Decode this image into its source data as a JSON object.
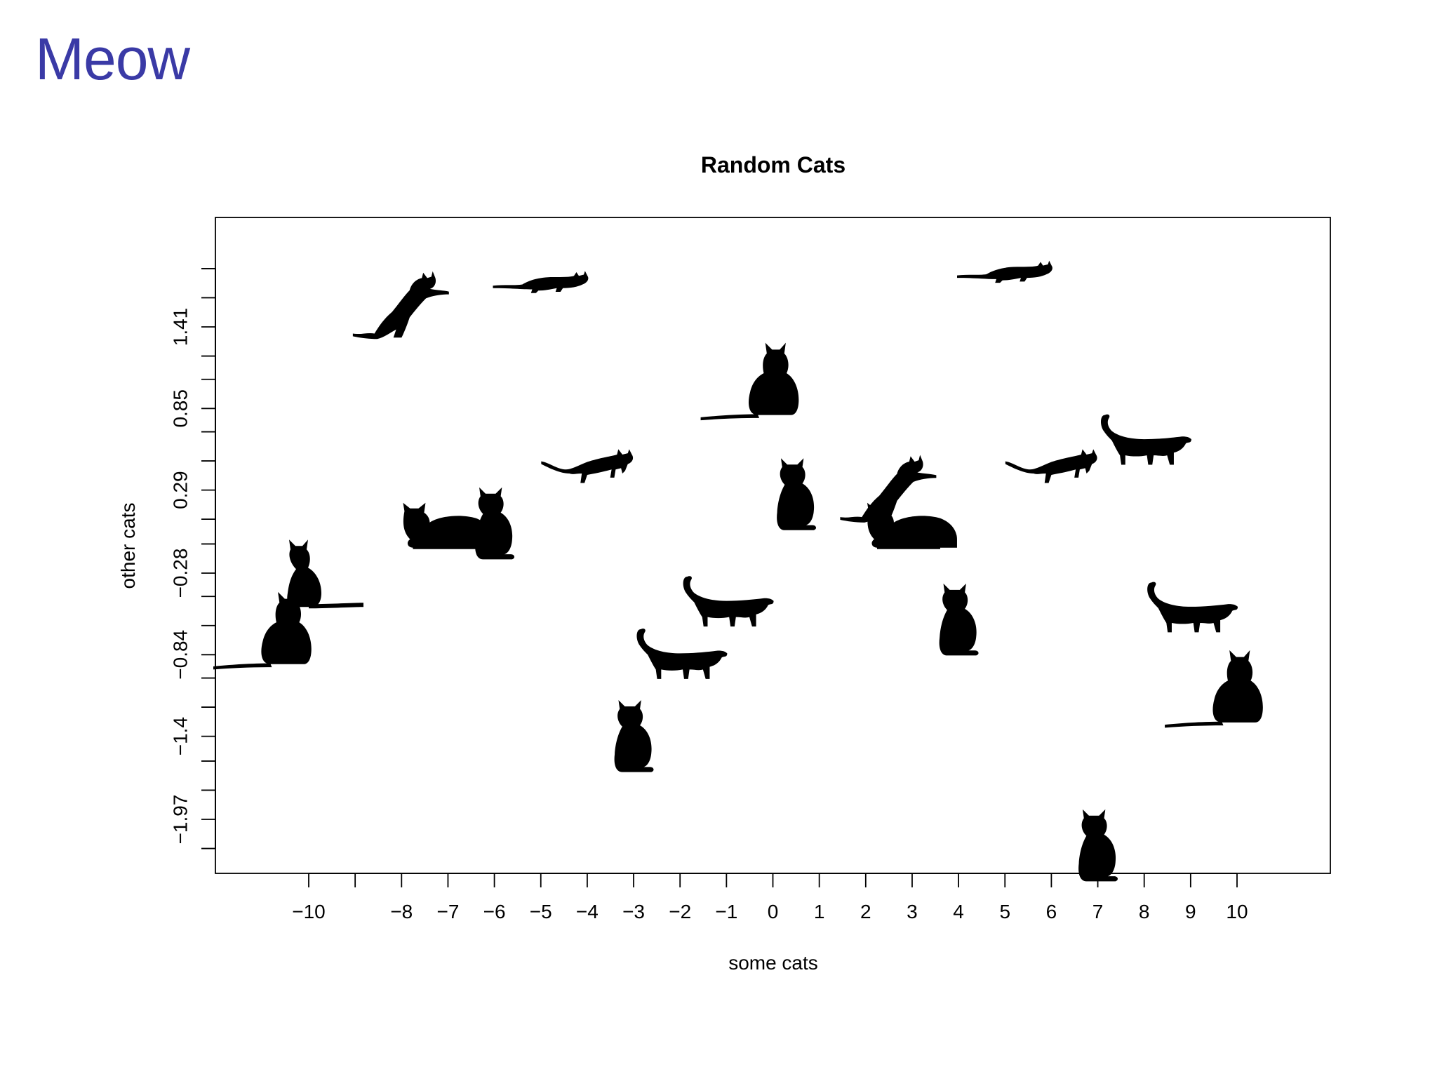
{
  "slide": {
    "title": "Meow"
  },
  "chart_data": {
    "type": "scatter",
    "title": "Random Cats",
    "xlabel": "some cats",
    "ylabel": "other cats",
    "marker": "cat-silhouette-icon",
    "marker_color": "#000000",
    "title_color": "#3a3aa6",
    "xlim": [
      -12,
      12
    ],
    "ylim": [
      -2.6,
      2.2
    ],
    "grid": false,
    "x_ticks": [
      -10,
      -9,
      -8,
      -7,
      -6,
      -5,
      -4,
      -3,
      -2,
      -1,
      0,
      1,
      2,
      3,
      4,
      5,
      6,
      7,
      8,
      9,
      10
    ],
    "x_tick_labels": [
      "−10",
      "",
      "−8",
      "−7",
      "−6",
      "−5",
      "−4",
      "−3",
      "−2",
      "−1",
      "0",
      "1",
      "2",
      "3",
      "4",
      "5",
      "6",
      "7",
      "8",
      "9",
      "10"
    ],
    "y_ticks": [
      -2.17,
      -1.97,
      -1.77,
      -1.57,
      -1.4,
      -1.2,
      -1.0,
      -0.84,
      -0.64,
      -0.44,
      -0.28,
      -0.08,
      0.09,
      0.29,
      0.49,
      0.69,
      0.85,
      1.05,
      1.21,
      1.41,
      1.61,
      1.81
    ],
    "y_tick_labels": [
      "",
      "−1.97",
      "",
      "",
      "−1.4",
      "",
      "",
      "−0.84",
      "",
      "",
      "−0.28",
      "",
      "",
      "0.29",
      "",
      "",
      "0.85",
      "",
      "",
      "1.41",
      "",
      ""
    ],
    "points": [
      {
        "x": -8.0,
        "y": 1.55,
        "pose": "leaping"
      },
      {
        "x": -5.0,
        "y": 1.71,
        "pose": "lying-stretched"
      },
      {
        "x": 0.0,
        "y": 1.04,
        "pose": "sitting-tail-long"
      },
      {
        "x": 5.0,
        "y": 1.78,
        "pose": "lying-stretched"
      },
      {
        "x": -4.0,
        "y": 0.45,
        "pose": "crouching"
      },
      {
        "x": 0.5,
        "y": 0.24,
        "pose": "sitting-front"
      },
      {
        "x": 2.5,
        "y": 0.29,
        "pose": "leaping"
      },
      {
        "x": 3.0,
        "y": 0.02,
        "pose": "lying-loaf"
      },
      {
        "x": -7.0,
        "y": 0.02,
        "pose": "lying-loaf"
      },
      {
        "x": -6.0,
        "y": 0.04,
        "pose": "sitting-front"
      },
      {
        "x": 6.0,
        "y": 0.45,
        "pose": "crouching"
      },
      {
        "x": 8.0,
        "y": 0.63,
        "pose": "walking-tail-up"
      },
      {
        "x": -10.0,
        "y": -0.31,
        "pose": "sitting-tail-right"
      },
      {
        "x": -10.5,
        "y": -0.67,
        "pose": "sitting-tail-long"
      },
      {
        "x": -1.0,
        "y": -0.48,
        "pose": "walking-tail-up"
      },
      {
        "x": -2.0,
        "y": -0.84,
        "pose": "walking-tail-up"
      },
      {
        "x": 4.0,
        "y": -0.62,
        "pose": "sitting-front"
      },
      {
        "x": 9.0,
        "y": -0.52,
        "pose": "walking-tail-up"
      },
      {
        "x": 10.0,
        "y": -1.07,
        "pose": "sitting-tail-long"
      },
      {
        "x": -3.0,
        "y": -1.42,
        "pose": "sitting-front"
      },
      {
        "x": 7.0,
        "y": -2.17,
        "pose": "sitting-front"
      }
    ]
  }
}
